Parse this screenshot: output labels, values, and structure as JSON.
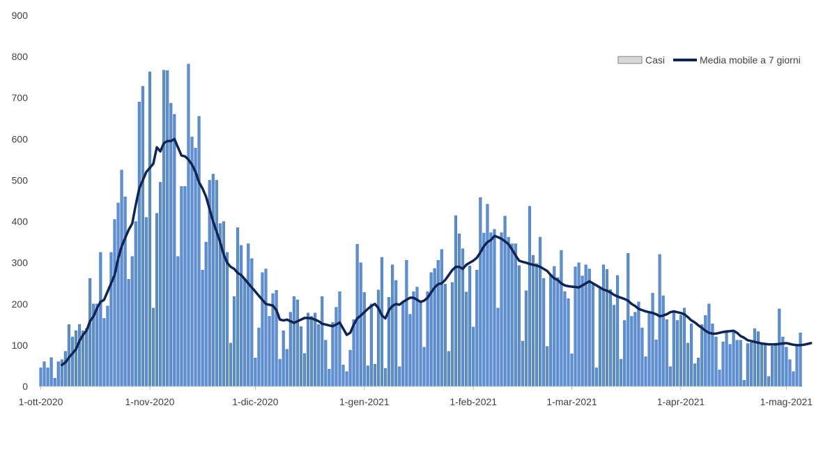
{
  "chart_data": {
    "type": "bar",
    "title": "",
    "xlabel": "",
    "ylabel": "",
    "ylim": [
      0,
      900
    ],
    "yticks": [
      0,
      100,
      200,
      300,
      400,
      500,
      600,
      700,
      800,
      900
    ],
    "grid": false,
    "legend_position": "top-right",
    "x_start": "2020-10-01",
    "x_end": "2021-05-04",
    "xtick_labels": [
      {
        "date": "2020-10-01",
        "label": "1-ott-2020"
      },
      {
        "date": "2020-11-01",
        "label": "1-nov-2020"
      },
      {
        "date": "2020-12-01",
        "label": "1-dic-2020"
      },
      {
        "date": "2021-01-01",
        "label": "1-gen-2021"
      },
      {
        "date": "2021-02-01",
        "label": "1-feb-2021"
      },
      {
        "date": "2021-03-01",
        "label": "1-mar-2021"
      },
      {
        "date": "2021-04-01",
        "label": "1-apr-2021"
      },
      {
        "date": "2021-05-01",
        "label": "1-mag-2021"
      }
    ],
    "series": [
      {
        "name": "Casi",
        "type": "bar",
        "color": "#5b8fd6",
        "values": [
          45,
          60,
          45,
          70,
          20,
          60,
          65,
          85,
          150,
          120,
          135,
          150,
          135,
          140,
          262,
          200,
          200,
          325,
          165,
          195,
          325,
          405,
          445,
          525,
          460,
          260,
          315,
          400,
          690,
          728,
          410,
          763,
          190,
          420,
          495,
          767,
          766,
          687,
          660,
          315,
          485,
          485,
          782,
          605,
          578,
          655,
          282,
          350,
          500,
          515,
          500,
          395,
          400,
          325,
          105,
          218,
          385,
          342,
          262,
          346,
          310,
          69,
          142,
          276,
          285,
          170,
          225,
          233,
          66,
          135,
          90,
          180,
          218,
          210,
          145,
          80,
          178,
          170,
          178,
          150,
          218,
          112,
          42,
          155,
          192,
          230,
          52,
          36,
          88,
          162,
          345,
          300,
          228,
          50,
          200,
          54,
          234,
          313,
          44,
          216,
          295,
          257,
          48,
          207,
          306,
          175,
          230,
          241,
          205,
          95,
          230,
          276,
          286,
          306,
          332,
          248,
          85,
          252,
          414,
          370,
          334,
          229,
          292,
          144,
          282,
          458,
          372,
          442,
          373,
          381,
          190,
          373,
          413,
          362,
          346,
          346,
          293,
          110,
          232,
          437,
          318,
          298,
          362,
          262,
          97,
          272,
          291,
          264,
          330,
          230,
          213,
          79,
          290,
          300,
          268,
          295,
          285,
          247,
          45,
          240,
          295,
          284,
          235,
          197,
          269,
          66,
          160,
          323,
          170,
          180,
          205,
          142,
          72,
          180,
          226,
          113,
          320,
          220,
          162,
          48,
          180,
          160,
          173,
          190,
          105,
          152,
          55,
          69,
          150,
          172,
          200,
          152,
          120,
          40,
          108,
          136,
          102,
          133,
          112,
          112,
          15,
          104,
          106,
          140,
          133,
          104,
          103,
          24,
          98,
          105,
          188,
          120,
          95,
          65,
          36,
          98,
          130
        ]
      },
      {
        "name": "Media mobile a 7 giorni",
        "type": "line",
        "color": "#0e2453",
        "values": [
          null,
          null,
          null,
          null,
          null,
          null,
          52,
          58,
          70,
          80,
          90,
          110,
          125,
          135,
          158,
          170,
          190,
          205,
          210,
          230,
          250,
          270,
          310,
          340,
          360,
          380,
          395,
          440,
          480,
          500,
          520,
          530,
          540,
          580,
          570,
          590,
          595,
          595,
          600,
          580,
          560,
          558,
          550,
          538,
          520,
          495,
          480,
          460,
          430,
          400,
          375,
          350,
          320,
          300,
          290,
          285,
          275,
          270,
          260,
          250,
          240,
          230,
          220,
          210,
          200,
          198,
          196,
          185,
          162,
          160,
          162,
          158,
          154,
          158,
          162,
          166,
          166,
          165,
          162,
          158,
          152,
          150,
          148,
          146,
          150,
          155,
          140,
          125,
          130,
          150,
          165,
          172,
          180,
          188,
          195,
          200,
          190,
          172,
          165,
          185,
          195,
          200,
          198,
          205,
          210,
          215,
          215,
          210,
          205,
          208,
          215,
          228,
          240,
          248,
          250,
          258,
          270,
          282,
          290,
          290,
          285,
          295,
          300,
          305,
          312,
          325,
          340,
          350,
          355,
          365,
          362,
          358,
          352,
          345,
          332,
          318,
          305,
          302,
          300,
          297,
          295,
          293,
          290,
          285,
          280,
          270,
          262,
          258,
          250,
          245,
          243,
          242,
          241,
          240,
          245,
          250,
          255,
          250,
          245,
          240,
          235,
          232,
          228,
          222,
          218,
          215,
          212,
          208,
          200,
          195,
          188,
          185,
          182,
          180,
          178,
          175,
          170,
          172,
          175,
          180,
          182,
          180,
          178,
          175,
          168,
          160,
          155,
          148,
          142,
          135,
          130,
          128,
          128,
          130,
          132,
          133,
          134,
          135,
          130,
          122,
          118,
          112,
          110,
          108,
          106,
          104,
          103,
          102,
          102,
          102,
          103,
          104,
          105,
          103,
          101,
          100,
          100,
          101,
          103,
          105
        ]
      }
    ]
  },
  "legend": {
    "items": [
      {
        "label": "Casi",
        "color": "#5b8fd6",
        "kind": "bar"
      },
      {
        "label": "Media mobile a 7 giorni",
        "color": "#0e2453",
        "kind": "line"
      }
    ]
  }
}
